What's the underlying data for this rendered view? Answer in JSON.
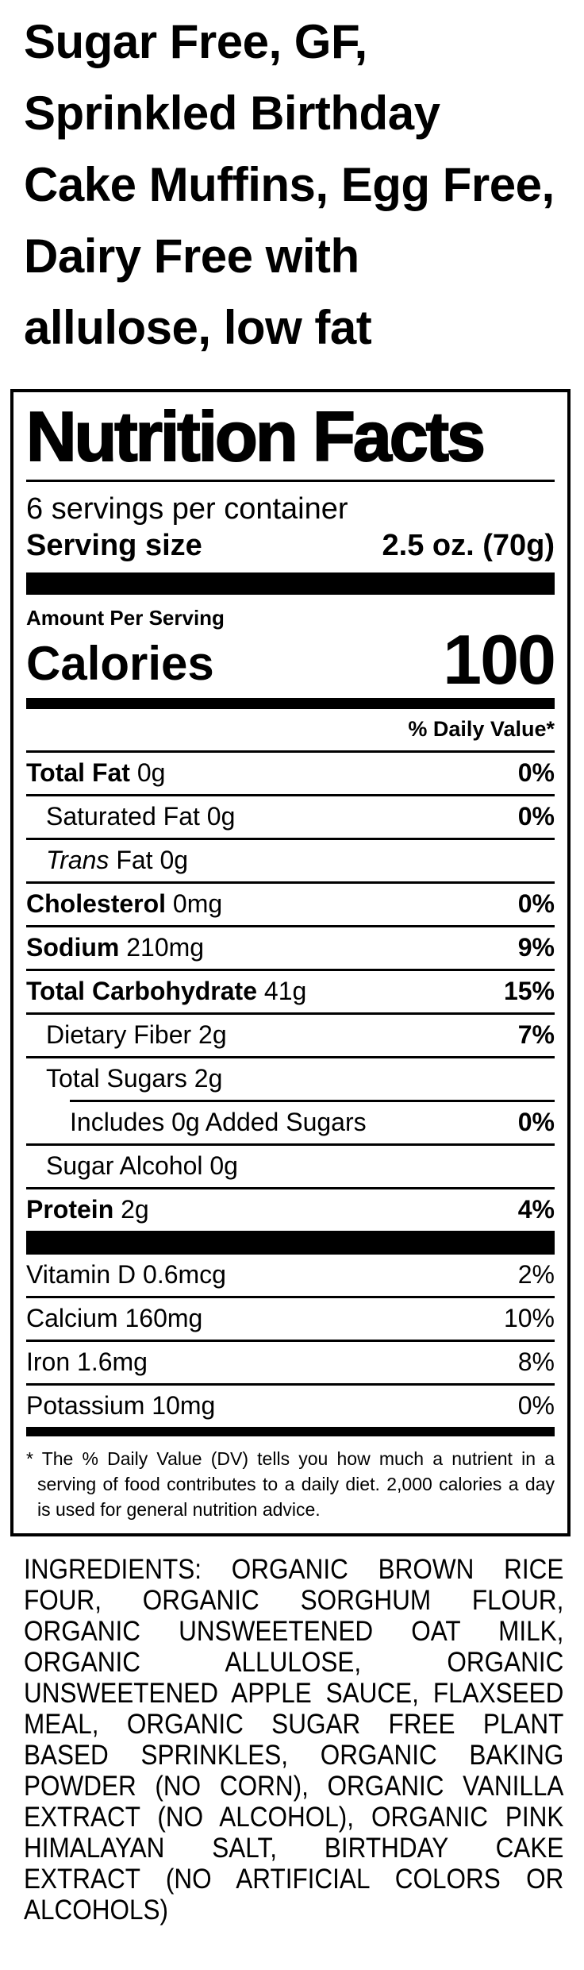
{
  "page": {
    "title": "Sugar Free, GF,\nSprinkled Birthday\nCake Muffins, Egg Free,\nDairy Free with\nallulose, low fat"
  },
  "nutrition": {
    "panel_title": "Nutrition Facts",
    "servings_per_container": "6 servings per container",
    "serving_size_label": "Serving size",
    "serving_size_value": "2.5 oz. (70g)",
    "amount_per_serving": "Amount Per Serving",
    "calories_label": "Calories",
    "calories_value": "100",
    "daily_value_header": "% Daily Value*",
    "rows": [
      {
        "name": "total-fat",
        "bold": "Total Fat",
        "rest": " 0g",
        "dv": "0%",
        "dv_bold": true,
        "indent": 0,
        "rule": "full"
      },
      {
        "name": "saturated-fat",
        "rest": "Saturated Fat 0g",
        "dv": "0%",
        "dv_bold": true,
        "indent": 1,
        "rule": "full"
      },
      {
        "name": "trans-fat",
        "italic": "Trans",
        "rest": " Fat 0g",
        "dv": "",
        "dv_bold": false,
        "indent": 1,
        "rule": "full"
      },
      {
        "name": "cholesterol",
        "bold": "Cholesterol",
        "rest": " 0mg",
        "dv": "0%",
        "dv_bold": true,
        "indent": 0,
        "rule": "full"
      },
      {
        "name": "sodium",
        "bold": "Sodium",
        "rest": " 210mg",
        "dv": "9%",
        "dv_bold": true,
        "indent": 0,
        "rule": "full"
      },
      {
        "name": "total-carbohydrate",
        "bold": "Total Carbohydrate",
        "rest": " 41g",
        "dv": "15%",
        "dv_bold": true,
        "indent": 0,
        "rule": "full"
      },
      {
        "name": "dietary-fiber",
        "rest": "Dietary Fiber 2g",
        "dv": "7%",
        "dv_bold": true,
        "indent": 1,
        "rule": "full"
      },
      {
        "name": "total-sugars",
        "rest": "Total Sugars 2g",
        "dv": "",
        "dv_bold": false,
        "indent": 1,
        "rule": "full"
      },
      {
        "name": "added-sugars",
        "rest": "Includes 0g Added Sugars",
        "dv": "0%",
        "dv_bold": true,
        "indent": 2,
        "rule": "indent"
      },
      {
        "name": "sugar-alcohol",
        "rest": "Sugar Alcohol 0g",
        "dv": "",
        "dv_bold": false,
        "indent": 1,
        "rule": "full"
      },
      {
        "name": "protein",
        "bold": "Protein",
        "rest": " 2g",
        "dv": "4%",
        "dv_bold": true,
        "indent": 0,
        "rule": "full"
      }
    ],
    "vitamins": [
      {
        "name": "vitamin-d",
        "label": "Vitamin D 0.6mcg",
        "dv": "2%"
      },
      {
        "name": "calcium",
        "label": "Calcium 160mg",
        "dv": "10%"
      },
      {
        "name": "iron",
        "label": "Iron 1.6mg",
        "dv": "8%"
      },
      {
        "name": "potassium",
        "label": "Potassium 10mg",
        "dv": "0%"
      }
    ],
    "footnote": "* The % Daily Value (DV) tells you how much a nutrient in a serving of food contributes to a daily diet. 2,000 calories a day is used for general nutrition advice."
  },
  "ingredients": {
    "text": "INGREDIENTS: ORGANIC BROWN RICE FOUR, ORGANIC SORGHUM FLOUR, ORGANIC UNSWEETENED OAT MILK, ORGANIC ALLULOSE, ORGANIC UNSWEETENED APPLE SAUCE, FLAXSEED MEAL, ORGANIC SUGAR FREE PLANT BASED SPRINKLES, ORGANIC BAKING POWDER (NO CORN), ORGANIC VANILLA EXTRACT (NO ALCOHOL), ORGANIC PINK HIMALAYAN SALT, BIRTHDAY CAKE EXTRACT (NO ARTIFICIAL COLORS OR ALCOHOLS)"
  },
  "colors": {
    "ink": "#000000",
    "paper": "#ffffff"
  }
}
